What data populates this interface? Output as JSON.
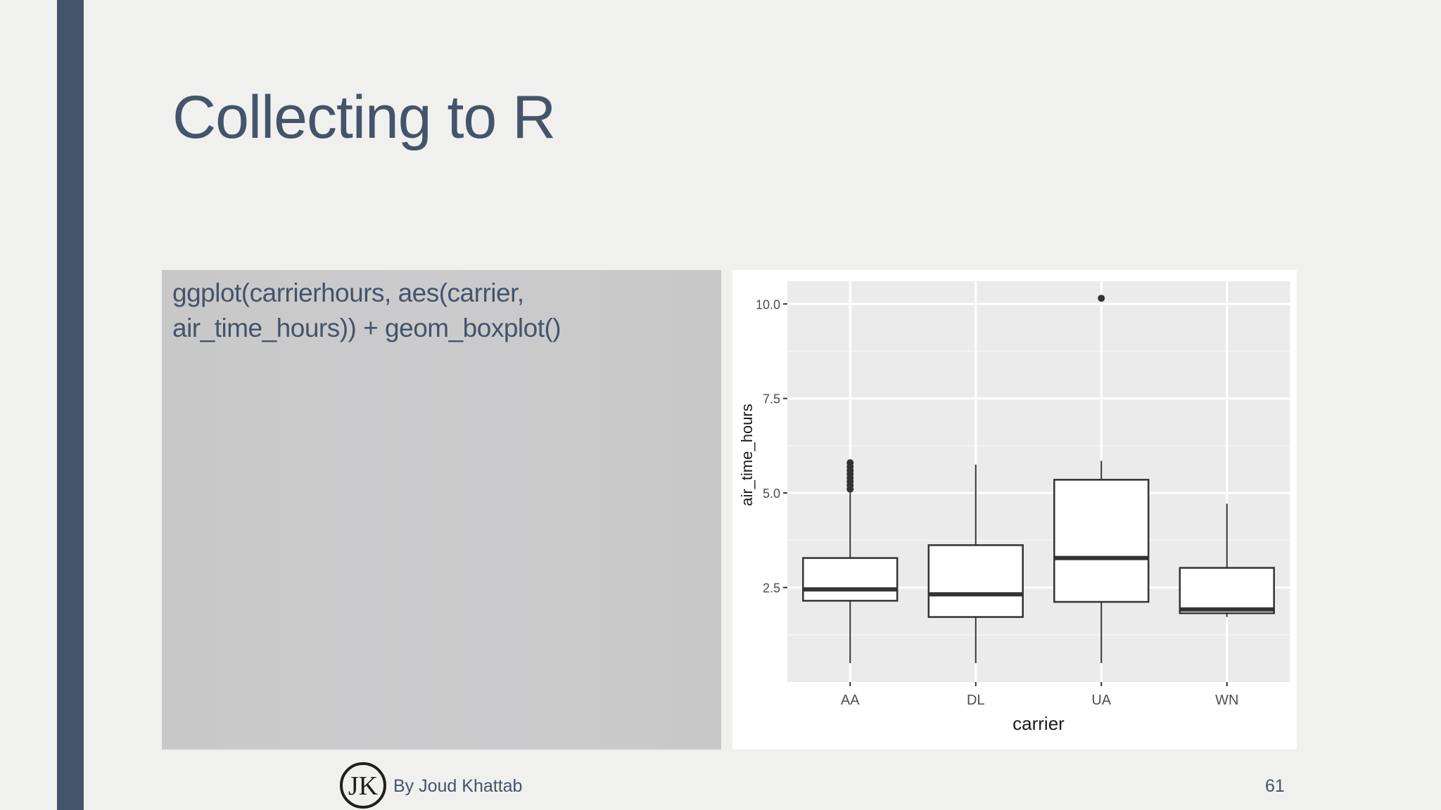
{
  "slide": {
    "title": "Collecting to R",
    "code_line_1": "ggplot(carrierhours, aes(carrier,",
    "code_line_2": "air_time_hours)) + geom_boxplot()"
  },
  "footer": {
    "logo_text": "JK",
    "author": "By Joud Khattab",
    "page_number": "61"
  },
  "colors": {
    "accent_bar": "#44546a",
    "title_text": "#44546a",
    "code_box_bg": "#c8c8c8",
    "plot_bg": "#ebebeb"
  },
  "chart_data": {
    "type": "boxplot",
    "title": "",
    "xlabel": "carrier",
    "ylabel": "air_time_hours",
    "categories": [
      "AA",
      "DL",
      "UA",
      "WN"
    ],
    "y_ticks": [
      2.5,
      5.0,
      7.5,
      10.0
    ],
    "y_tick_labels": [
      "2.5",
      "5.0",
      "7.5",
      "10.0"
    ],
    "ylim": [
      0.0,
      10.6
    ],
    "grid": true,
    "legend": "none",
    "boxes": [
      {
        "category": "AA",
        "whisker_low": 0.5,
        "q1": 2.15,
        "median": 2.45,
        "q3": 3.28,
        "whisker_high": 5.0,
        "outliers": [
          5.1,
          5.2,
          5.3,
          5.4,
          5.5,
          5.6,
          5.7,
          5.8
        ]
      },
      {
        "category": "DL",
        "whisker_low": 0.5,
        "q1": 1.72,
        "median": 2.32,
        "q3": 3.62,
        "whisker_high": 5.75,
        "outliers": []
      },
      {
        "category": "UA",
        "whisker_low": 0.5,
        "q1": 2.12,
        "median": 3.28,
        "q3": 5.35,
        "whisker_high": 5.85,
        "outliers": [
          10.15
        ]
      },
      {
        "category": "WN",
        "whisker_low": 1.72,
        "q1": 1.82,
        "median": 1.92,
        "q3": 3.02,
        "whisker_high": 4.72,
        "outliers": []
      }
    ]
  }
}
